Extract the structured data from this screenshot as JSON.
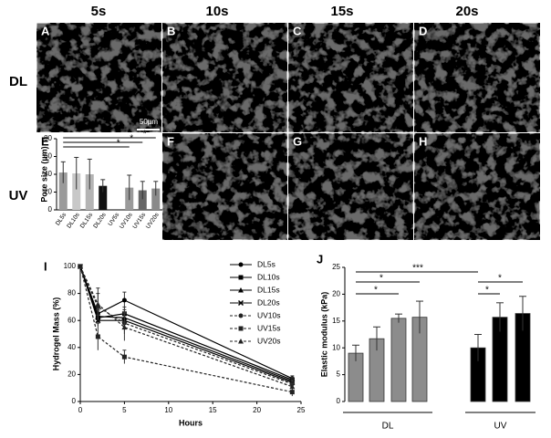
{
  "column_headers": [
    "5s",
    "10s",
    "15s",
    "20s"
  ],
  "row_labels": [
    "DL",
    "UV"
  ],
  "images": [
    {
      "label": "A"
    },
    {
      "label": "B"
    },
    {
      "label": "C"
    },
    {
      "label": "D"
    },
    {
      "label": "F"
    },
    {
      "label": "G"
    },
    {
      "label": "H"
    }
  ],
  "scale_bar": "50µm",
  "chart_data": [
    {
      "type": "bar",
      "panel_label": "E",
      "y_label": "Pore size (µm)",
      "categories": [
        "DL5s",
        "DL10s",
        "DL15s",
        "DL20s",
        "UV5s",
        "UV10s",
        "UV15s",
        "UV20s"
      ],
      "values": [
        42,
        41,
        40,
        27,
        null,
        25,
        22,
        24
      ],
      "errors": [
        12,
        18,
        17,
        7,
        null,
        14,
        10,
        8
      ],
      "colors": [
        "#9a9a9a",
        "#c8c8c8",
        "#b4b4b4",
        "#111111",
        "#999999",
        "#9a9a9a",
        "#666666",
        "#8a8a8a"
      ],
      "ylim": [
        0,
        80
      ],
      "yticks": [
        0,
        20,
        40,
        60,
        80
      ],
      "annotations": [
        "*",
        "*",
        "*"
      ]
    },
    {
      "type": "line",
      "panel_label": "I",
      "x_label": "Hours",
      "y_label": "Hydrogel Mass (%)",
      "x": [
        0,
        2,
        5,
        24
      ],
      "xlim": [
        0,
        25
      ],
      "xticks": [
        0,
        5,
        10,
        15,
        20,
        25
      ],
      "ylim": [
        0,
        100
      ],
      "yticks": [
        0,
        20,
        40,
        60,
        80,
        100
      ],
      "series": [
        {
          "name": "DL5s",
          "color": "#000",
          "marker": "circle",
          "dashed": false,
          "values": [
            100,
            65,
            75,
            17
          ],
          "errors": [
            0,
            6,
            6,
            2
          ]
        },
        {
          "name": "DL10s",
          "color": "#000",
          "marker": "square",
          "dashed": false,
          "values": [
            100,
            62,
            65,
            16
          ],
          "errors": [
            0,
            5,
            5,
            2
          ]
        },
        {
          "name": "DL15s",
          "color": "#000",
          "marker": "triangle",
          "dashed": false,
          "values": [
            100,
            63,
            62,
            15
          ],
          "errors": [
            0,
            5,
            6,
            2
          ]
        },
        {
          "name": "DL20s",
          "color": "#000",
          "marker": "cross",
          "dashed": false,
          "values": [
            100,
            60,
            60,
            14
          ],
          "errors": [
            0,
            4,
            5,
            2
          ]
        },
        {
          "name": "UV10s",
          "color": "#222",
          "marker": "circle",
          "dashed": true,
          "values": [
            100,
            70,
            58,
            13
          ],
          "errors": [
            0,
            10,
            8,
            2
          ]
        },
        {
          "name": "UV15s",
          "color": "#222",
          "marker": "square",
          "dashed": true,
          "values": [
            100,
            48,
            33,
            7
          ],
          "errors": [
            0,
            10,
            5,
            3
          ]
        },
        {
          "name": "UV20s",
          "color": "#222",
          "marker": "triangle",
          "dashed": true,
          "values": [
            100,
            72,
            55,
            11
          ],
          "errors": [
            0,
            12,
            10,
            2
          ]
        }
      ]
    },
    {
      "type": "groupbar",
      "panel_label": "J",
      "y_label": "Elastic modulus (kPa)",
      "ylim": [
        0,
        25
      ],
      "yticks": [
        0,
        5,
        10,
        15,
        20,
        25
      ],
      "series": [
        {
          "name": "DL",
          "color": "#8c8c8c",
          "values": [
            9,
            11.7,
            15.5,
            15.7
          ],
          "errors": [
            1.5,
            2.2,
            0.8,
            3
          ]
        },
        {
          "name": "UV",
          "color": "#000000",
          "values": [
            10,
            15.7,
            16.4
          ],
          "errors": [
            2.5,
            2.7,
            3.2
          ]
        }
      ],
      "annotations": [
        "***",
        "*",
        "*",
        "*",
        "*"
      ]
    }
  ]
}
